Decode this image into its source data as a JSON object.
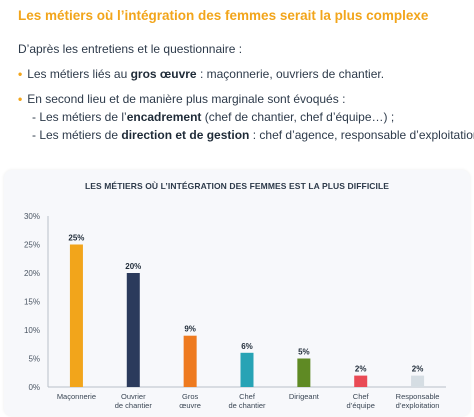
{
  "header": {
    "title": "Les métiers où l’intégration des femmes serait la plus complexe"
  },
  "body_text": {
    "intro": "D’après les entretiens et le questionnaire :",
    "bullet1": {
      "pre": "Les métiers liés au ",
      "bold": "gros œuvre",
      "post": " : maçonnerie, ouvriers de chantier."
    },
    "bullet2": {
      "text": "En second lieu et de manière plus marginale sont évoqués :"
    },
    "sub1": {
      "pre": "- Les métiers de l’",
      "bold": "encadrement",
      "post": " (chef de chantier, chef d’équipe…) ;"
    },
    "sub2": {
      "pre": "- Les métiers de ",
      "bold": "direction et de gestion",
      "post": " : chef d’agence, responsable d’exploitation."
    }
  },
  "colors": {
    "accent": "#f2a51b",
    "text": "#2d3a4a"
  },
  "chart_data": {
    "type": "bar",
    "title": "LES MÉTIERS OÙ L’INTÉGRATION DES FEMMES EST LA PLUS DIFFICILE",
    "categories": [
      [
        "Maçonnerie"
      ],
      [
        "Ouvrier",
        "de chantier"
      ],
      [
        "Gros",
        "œuvre"
      ],
      [
        "Chef",
        "de chantier"
      ],
      [
        "Dirigeant"
      ],
      [
        "Chef",
        "d’équipe"
      ],
      [
        "Responsable",
        "d’exploitation"
      ]
    ],
    "values": [
      25,
      20,
      9,
      6,
      5,
      2,
      2
    ],
    "value_labels": [
      "25%",
      "20%",
      "9%",
      "6%",
      "5%",
      "2%",
      "2%"
    ],
    "bar_colors": [
      "#f2a51b",
      "#2b3a5c",
      "#ee7a1f",
      "#27a3b5",
      "#5f8a24",
      "#e94a55",
      "#d5dde3"
    ],
    "ylim": [
      0,
      30
    ],
    "yticks": [
      0,
      5,
      10,
      15,
      20,
      25,
      30
    ],
    "ytick_labels": [
      "0%",
      "5%",
      "10%",
      "15%",
      "20%",
      "25%",
      "30%"
    ],
    "grid": false,
    "xlabel": "",
    "ylabel": ""
  }
}
